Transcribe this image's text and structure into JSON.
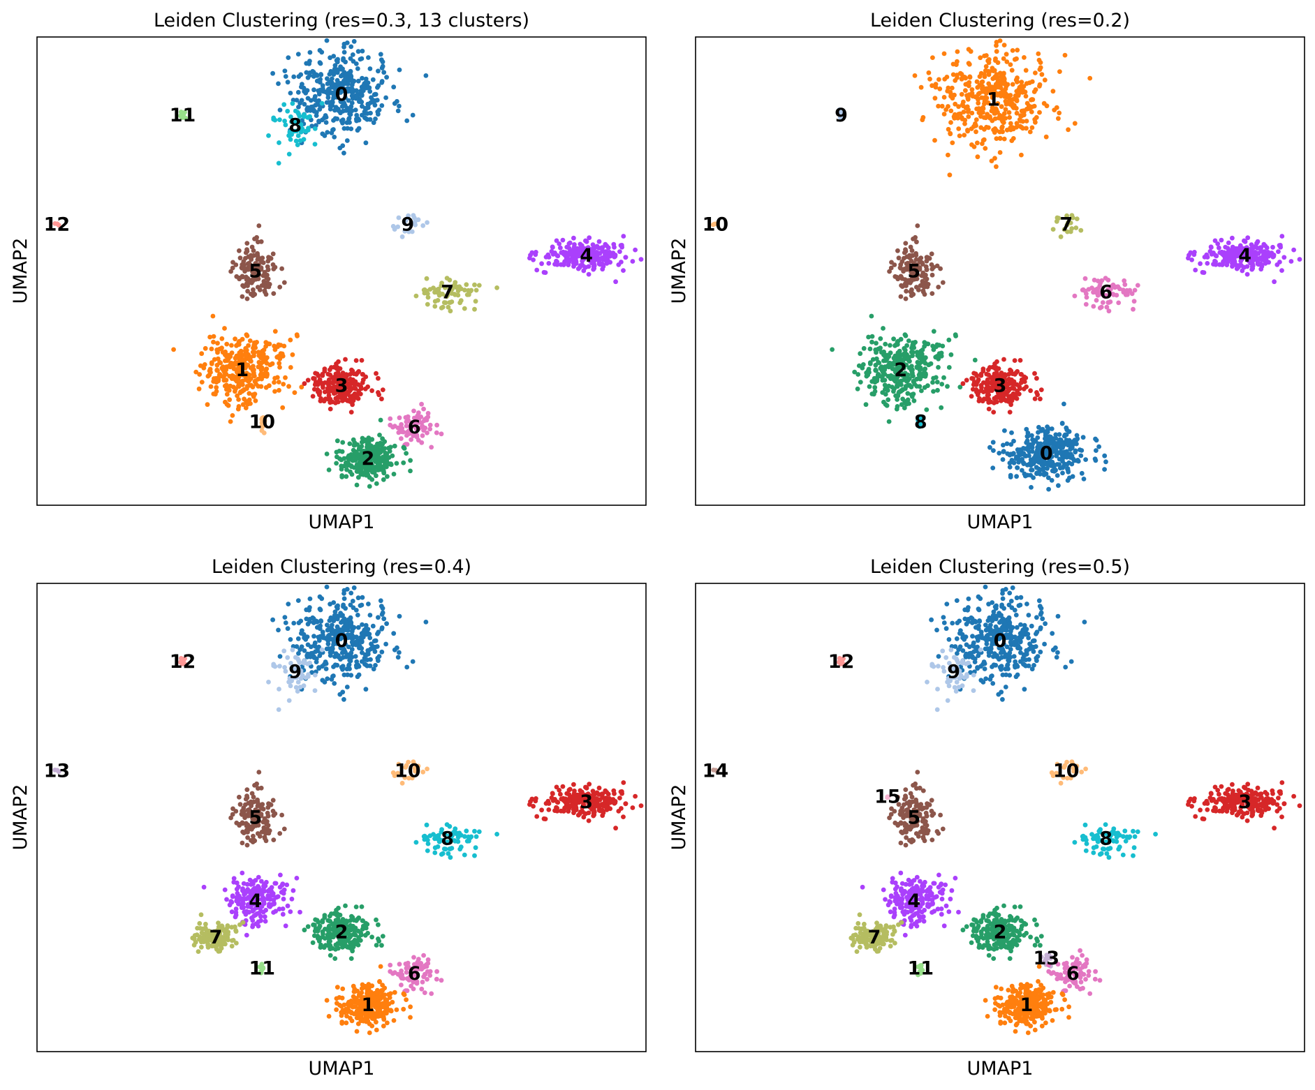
{
  "palette": {
    "c0": "#1f77b4",
    "c1": "#ff7f0e",
    "c2": "#279e68",
    "c3": "#d62728",
    "c4": "#aa40fc",
    "c5": "#8c564b",
    "c6": "#e377c2",
    "c7": "#b5bd61",
    "c8": "#17becf",
    "c9": "#aec7e8",
    "c10": "#ffbb78",
    "c11": "#98df8a",
    "c12": "#ff9896",
    "c13": "#c5b0d5",
    "c14": "#c49c94",
    "c15": "#f7b6d2"
  },
  "chart_data": [
    {
      "type": "scatter",
      "title": "Leiden Clustering (res=0.3, 13 clusters)",
      "xlabel": "UMAP1",
      "ylabel": "UMAP2",
      "grid": false,
      "clusters": [
        {
          "label": "0",
          "color": "c0",
          "centroid": [
            1.6,
            9.2
          ],
          "spread": [
            0.7,
            0.7
          ],
          "n": 380
        },
        {
          "label": "8",
          "color": "c8",
          "centroid": [
            0.9,
            8.6
          ],
          "spread": [
            0.3,
            0.4
          ],
          "n": 50
        },
        {
          "label": "11",
          "color": "c11",
          "centroid": [
            -0.8,
            8.8
          ],
          "spread": [
            0.05,
            0.1
          ],
          "n": 10
        },
        {
          "label": "12",
          "color": "c12",
          "centroid": [
            -2.7,
            6.7
          ],
          "spread": [
            0.05,
            0.05
          ],
          "n": 3
        },
        {
          "label": "9",
          "color": "c9",
          "centroid": [
            2.6,
            6.7
          ],
          "spread": [
            0.25,
            0.2
          ],
          "n": 18
        },
        {
          "label": "5",
          "color": "c5",
          "centroid": [
            0.3,
            5.8
          ],
          "spread": [
            0.3,
            0.6
          ],
          "n": 130
        },
        {
          "label": "4",
          "color": "c4",
          "centroid": [
            5.3,
            6.1
          ],
          "spread": [
            0.6,
            0.25
          ],
          "n": 230
        },
        {
          "label": "7",
          "color": "c7",
          "centroid": [
            3.2,
            5.4
          ],
          "spread": [
            0.4,
            0.25
          ],
          "n": 70
        },
        {
          "label": "1",
          "color": "c1",
          "centroid": [
            0.1,
            3.9
          ],
          "spread": [
            0.6,
            0.6
          ],
          "n": 330
        },
        {
          "label": "3",
          "color": "c3",
          "centroid": [
            1.6,
            3.6
          ],
          "spread": [
            0.4,
            0.35
          ],
          "n": 220
        },
        {
          "label": "10",
          "color": "c10",
          "centroid": [
            0.4,
            2.9
          ],
          "spread": [
            0.05,
            0.2
          ],
          "n": 10
        },
        {
          "label": "6",
          "color": "c6",
          "centroid": [
            2.7,
            2.8
          ],
          "spread": [
            0.25,
            0.35
          ],
          "n": 80
        },
        {
          "label": "2",
          "color": "c2",
          "centroid": [
            2.0,
            2.2
          ],
          "spread": [
            0.4,
            0.35
          ],
          "n": 260
        }
      ]
    },
    {
      "type": "scatter",
      "title": "Leiden Clustering (res=0.2)",
      "xlabel": "UMAP1",
      "ylabel": "UMAP2",
      "grid": false,
      "clusters": [
        {
          "label": "1",
          "color": "c1",
          "centroid": [
            1.5,
            9.1
          ],
          "spread": [
            0.8,
            0.8
          ],
          "n": 420
        },
        {
          "label": "9",
          "color": "c9",
          "centroid": [
            -0.8,
            8.8
          ],
          "spread": [
            0.05,
            0.1
          ],
          "n": 10
        },
        {
          "label": "10",
          "color": "c10",
          "centroid": [
            -2.7,
            6.7
          ],
          "spread": [
            0.05,
            0.05
          ],
          "n": 3
        },
        {
          "label": "7",
          "color": "c7",
          "centroid": [
            2.6,
            6.7
          ],
          "spread": [
            0.25,
            0.2
          ],
          "n": 18
        },
        {
          "label": "5",
          "color": "c5",
          "centroid": [
            0.3,
            5.8
          ],
          "spread": [
            0.3,
            0.6
          ],
          "n": 130
        },
        {
          "label": "4",
          "color": "c4",
          "centroid": [
            5.3,
            6.1
          ],
          "spread": [
            0.6,
            0.25
          ],
          "n": 230
        },
        {
          "label": "6",
          "color": "c6",
          "centroid": [
            3.2,
            5.4
          ],
          "spread": [
            0.4,
            0.25
          ],
          "n": 70
        },
        {
          "label": "2",
          "color": "c2",
          "centroid": [
            0.1,
            3.9
          ],
          "spread": [
            0.6,
            0.6
          ],
          "n": 330
        },
        {
          "label": "3",
          "color": "c3",
          "centroid": [
            1.6,
            3.6
          ],
          "spread": [
            0.4,
            0.35
          ],
          "n": 220
        },
        {
          "label": "8",
          "color": "c8",
          "centroid": [
            0.4,
            2.9
          ],
          "spread": [
            0.05,
            0.2
          ],
          "n": 10
        },
        {
          "label": "0",
          "color": "c0",
          "centroid": [
            2.3,
            2.3
          ],
          "spread": [
            0.55,
            0.45
          ],
          "n": 340
        }
      ]
    },
    {
      "type": "scatter",
      "title": "Leiden Clustering (res=0.4)",
      "xlabel": "UMAP1",
      "ylabel": "UMAP2",
      "grid": false,
      "clusters": [
        {
          "label": "0",
          "color": "c0",
          "centroid": [
            1.6,
            9.2
          ],
          "spread": [
            0.7,
            0.7
          ],
          "n": 380
        },
        {
          "label": "9",
          "color": "c9",
          "centroid": [
            0.9,
            8.6
          ],
          "spread": [
            0.3,
            0.4
          ],
          "n": 50
        },
        {
          "label": "12",
          "color": "c12",
          "centroid": [
            -0.8,
            8.8
          ],
          "spread": [
            0.05,
            0.1
          ],
          "n": 10
        },
        {
          "label": "13",
          "color": "c13",
          "centroid": [
            -2.7,
            6.7
          ],
          "spread": [
            0.05,
            0.05
          ],
          "n": 3
        },
        {
          "label": "10",
          "color": "c10",
          "centroid": [
            2.6,
            6.7
          ],
          "spread": [
            0.25,
            0.2
          ],
          "n": 18
        },
        {
          "label": "5",
          "color": "c5",
          "centroid": [
            0.3,
            5.8
          ],
          "spread": [
            0.3,
            0.6
          ],
          "n": 130
        },
        {
          "label": "3",
          "color": "c3",
          "centroid": [
            5.3,
            6.1
          ],
          "spread": [
            0.6,
            0.25
          ],
          "n": 230
        },
        {
          "label": "8",
          "color": "c8",
          "centroid": [
            3.2,
            5.4
          ],
          "spread": [
            0.4,
            0.25
          ],
          "n": 70
        },
        {
          "label": "4",
          "color": "c4",
          "centroid": [
            0.3,
            4.2
          ],
          "spread": [
            0.45,
            0.4
          ],
          "n": 200
        },
        {
          "label": "7",
          "color": "c7",
          "centroid": [
            -0.3,
            3.5
          ],
          "spread": [
            0.3,
            0.25
          ],
          "n": 120
        },
        {
          "label": "2",
          "color": "c2",
          "centroid": [
            1.6,
            3.6
          ],
          "spread": [
            0.4,
            0.35
          ],
          "n": 220
        },
        {
          "label": "11",
          "color": "c11",
          "centroid": [
            0.4,
            2.9
          ],
          "spread": [
            0.05,
            0.2
          ],
          "n": 10
        },
        {
          "label": "6",
          "color": "c6",
          "centroid": [
            2.7,
            2.8
          ],
          "spread": [
            0.25,
            0.35
          ],
          "n": 80
        },
        {
          "label": "1",
          "color": "c1",
          "centroid": [
            2.0,
            2.2
          ],
          "spread": [
            0.4,
            0.35
          ],
          "n": 260
        }
      ]
    },
    {
      "type": "scatter",
      "title": "Leiden Clustering (res=0.5)",
      "xlabel": "UMAP1",
      "ylabel": "UMAP2",
      "grid": false,
      "clusters": [
        {
          "label": "0",
          "color": "c0",
          "centroid": [
            1.6,
            9.2
          ],
          "spread": [
            0.7,
            0.7
          ],
          "n": 380
        },
        {
          "label": "9",
          "color": "c9",
          "centroid": [
            0.9,
            8.6
          ],
          "spread": [
            0.3,
            0.4
          ],
          "n": 50
        },
        {
          "label": "12",
          "color": "c12",
          "centroid": [
            -0.8,
            8.8
          ],
          "spread": [
            0.05,
            0.1
          ],
          "n": 10
        },
        {
          "label": "14",
          "color": "c14",
          "centroid": [
            -2.7,
            6.7
          ],
          "spread": [
            0.05,
            0.05
          ],
          "n": 3
        },
        {
          "label": "10",
          "color": "c10",
          "centroid": [
            2.6,
            6.7
          ],
          "spread": [
            0.25,
            0.2
          ],
          "n": 18
        },
        {
          "label": "15",
          "color": "c15",
          "centroid": [
            -0.1,
            6.2
          ],
          "spread": [
            0.03,
            0.03
          ],
          "n": 3
        },
        {
          "label": "5",
          "color": "c5",
          "centroid": [
            0.3,
            5.8
          ],
          "spread": [
            0.3,
            0.6
          ],
          "n": 130
        },
        {
          "label": "3",
          "color": "c3",
          "centroid": [
            5.3,
            6.1
          ],
          "spread": [
            0.6,
            0.25
          ],
          "n": 230
        },
        {
          "label": "8",
          "color": "c8",
          "centroid": [
            3.2,
            5.4
          ],
          "spread": [
            0.4,
            0.25
          ],
          "n": 70
        },
        {
          "label": "4",
          "color": "c4",
          "centroid": [
            0.3,
            4.2
          ],
          "spread": [
            0.45,
            0.4
          ],
          "n": 200
        },
        {
          "label": "7",
          "color": "c7",
          "centroid": [
            -0.3,
            3.5
          ],
          "spread": [
            0.3,
            0.25
          ],
          "n": 120
        },
        {
          "label": "2",
          "color": "c2",
          "centroid": [
            1.6,
            3.6
          ],
          "spread": [
            0.4,
            0.35
          ],
          "n": 220
        },
        {
          "label": "13",
          "color": "c13",
          "centroid": [
            2.3,
            3.1
          ],
          "spread": [
            0.1,
            0.15
          ],
          "n": 15
        },
        {
          "label": "11",
          "color": "c11",
          "centroid": [
            0.4,
            2.9
          ],
          "spread": [
            0.05,
            0.2
          ],
          "n": 10
        },
        {
          "label": "6",
          "color": "c6",
          "centroid": [
            2.7,
            2.8
          ],
          "spread": [
            0.25,
            0.35
          ],
          "n": 80
        },
        {
          "label": "1",
          "color": "c1",
          "centroid": [
            2.0,
            2.2
          ],
          "spread": [
            0.4,
            0.35
          ],
          "n": 260
        }
      ]
    }
  ]
}
